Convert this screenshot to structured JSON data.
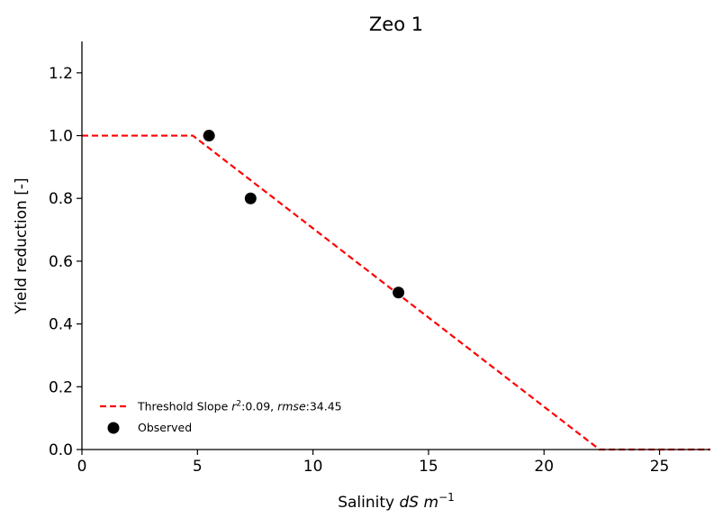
{
  "chart_data": {
    "type": "scatter",
    "title": "Zeo 1",
    "xlabel_prefix": "Salinity ",
    "xlabel_italic": "dS m",
    "xlabel_sup": "−1",
    "ylabel": "Yield reduction [-]",
    "xlim": [
      0,
      27.2
    ],
    "ylim": [
      0,
      1.3
    ],
    "xticks": [
      0,
      5,
      10,
      15,
      20,
      25
    ],
    "yticks": [
      0.0,
      0.2,
      0.4,
      0.6,
      0.8,
      1.0,
      1.2
    ],
    "xtick_labels": [
      "0",
      "5",
      "10",
      "15",
      "20",
      "25"
    ],
    "ytick_labels": [
      "0.0",
      "0.2",
      "0.4",
      "0.6",
      "0.8",
      "1.0",
      "1.2"
    ],
    "series": [
      {
        "name": "Threshold Slope",
        "kind": "line",
        "style": "dashed",
        "color": "#ff0000",
        "x": [
          0,
          4.8,
          22.4,
          27.2
        ],
        "y": [
          1.0,
          1.0,
          0.0,
          0.0
        ]
      },
      {
        "name": "Observed",
        "kind": "scatter",
        "color": "#000000",
        "x": [
          5.5,
          7.3,
          13.7
        ],
        "y": [
          1.0,
          0.8,
          0.5
        ]
      }
    ],
    "legend": {
      "position": "lower-left",
      "line_label_prefix": "Threshold Slope ",
      "r2_symbol": "r",
      "r2_sup": "2",
      "r2_value": ":0.09, ",
      "rmse_symbol": "rmse",
      "rmse_value": ":34.45",
      "scatter_label": "Observed"
    }
  }
}
